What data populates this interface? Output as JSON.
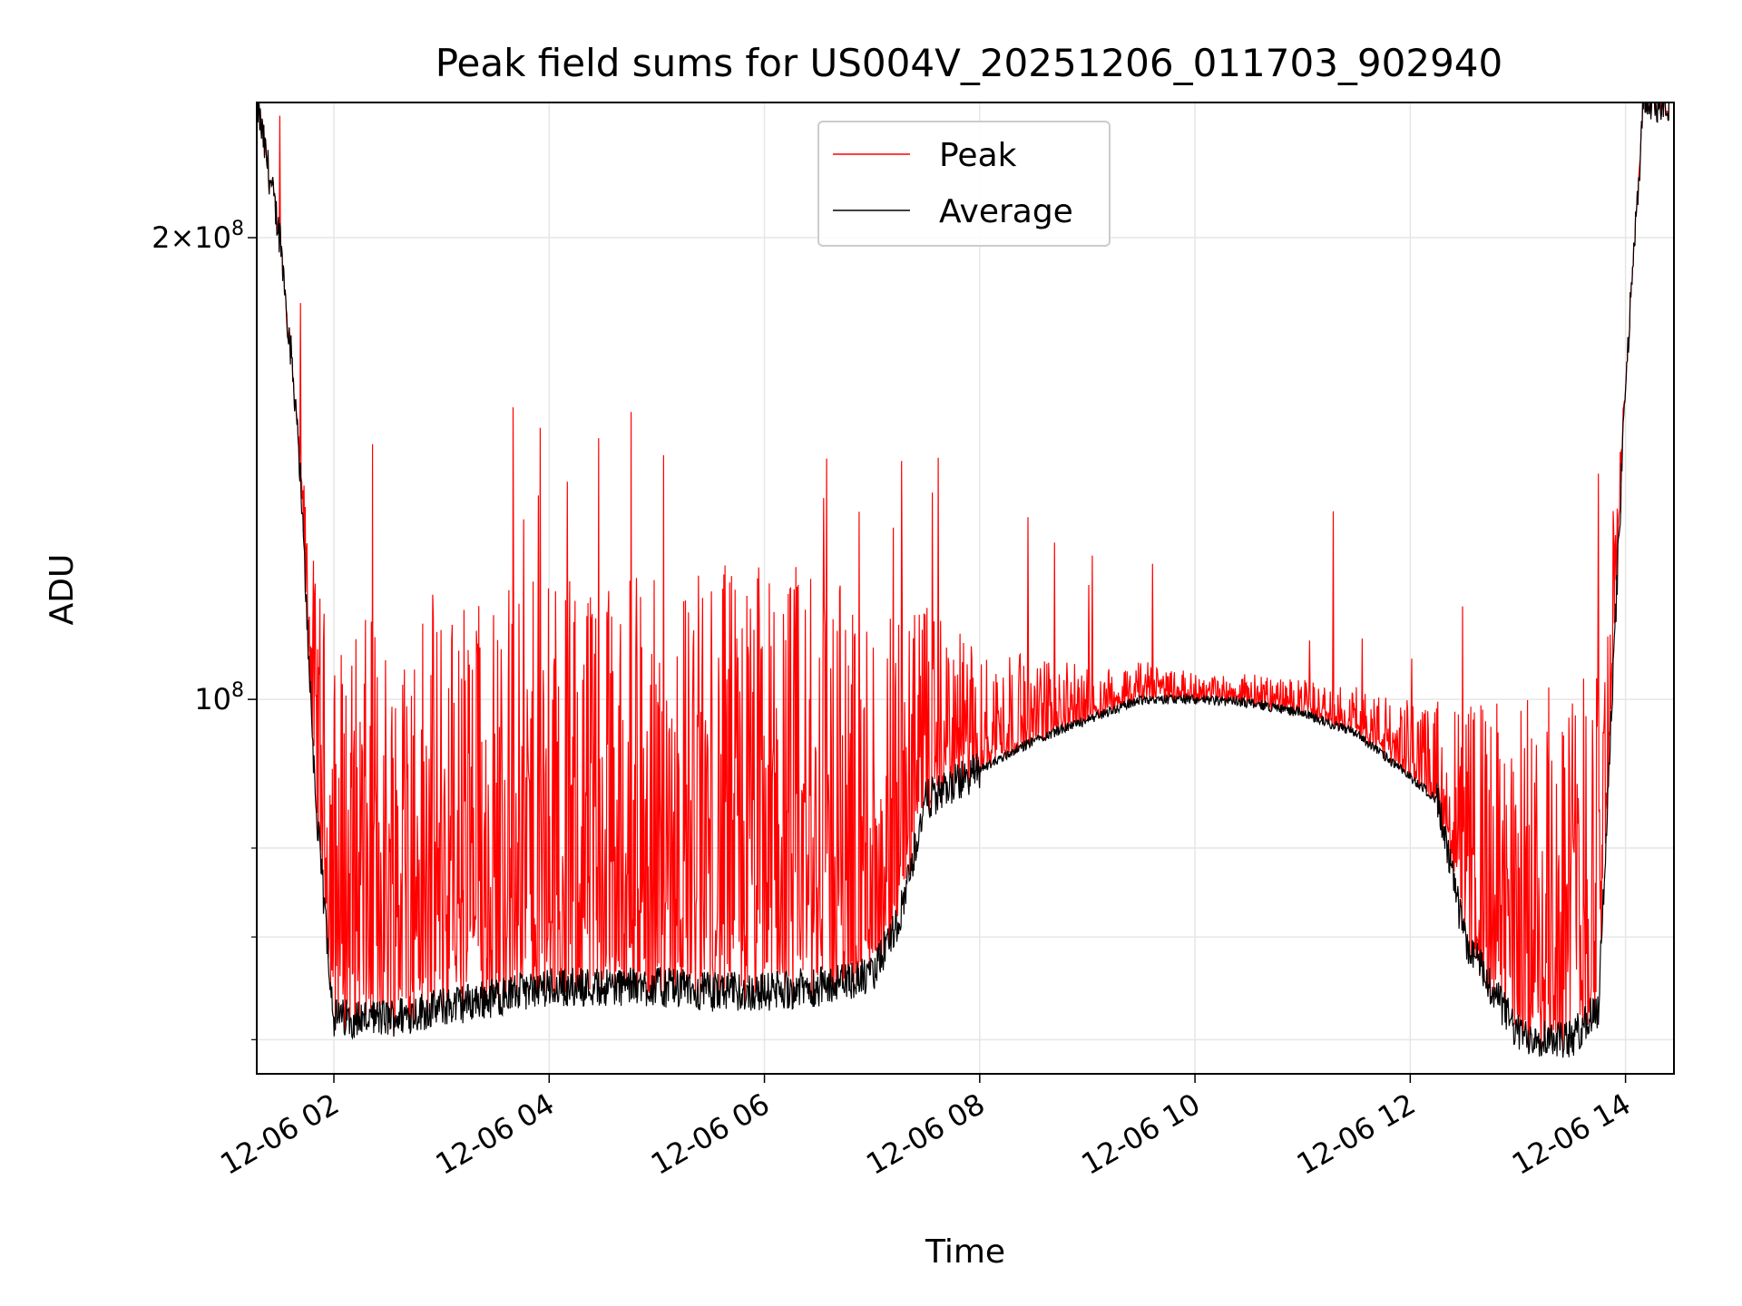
{
  "chart_data": {
    "type": "line",
    "title": "Peak field sums for US004V_20251206_011703_902940",
    "xlabel": "Time",
    "ylabel": "ADU",
    "x_ticks": [
      "12-06 02",
      "12-06 04",
      "12-06 06",
      "12-06 08",
      "12-06 10",
      "12-06 12",
      "12-06 14"
    ],
    "y_tick_labels": [
      "10",
      "2×10"
    ],
    "y_tick_exponent": "8",
    "y_scale": "log",
    "ylim": [
      57000000,
      245000000
    ],
    "xlim": [
      "2025-12-06 01:17",
      "2025-12-06 14:27"
    ],
    "grid": true,
    "legend_position": "upper-center",
    "colors": {
      "peak": "#ff0000",
      "average": "#000000",
      "grid": "#e6e6e6"
    },
    "series": [
      {
        "name": "Peak",
        "points": [
          [
            "01:17",
            245000000
          ],
          [
            "01:30",
            200000000
          ],
          [
            "01:40",
            150000000
          ],
          [
            "01:50",
            120000000
          ],
          [
            "02:00",
            110000000
          ],
          [
            "02:30",
            115000000
          ],
          [
            "03:00",
            118000000
          ],
          [
            "03:30",
            120000000
          ],
          [
            "04:00",
            120000000
          ],
          [
            "04:30",
            120000000
          ],
          [
            "05:00",
            122000000
          ],
          [
            "05:30",
            122000000
          ],
          [
            "06:00",
            125000000
          ],
          [
            "06:30",
            122000000
          ],
          [
            "07:00",
            120000000
          ],
          [
            "07:30",
            115000000
          ],
          [
            "08:00",
            108000000
          ],
          [
            "08:30",
            107000000
          ],
          [
            "09:00",
            105000000
          ],
          [
            "09:30",
            106000000
          ],
          [
            "10:00",
            104000000
          ],
          [
            "10:30",
            104000000
          ],
          [
            "11:00",
            103000000
          ],
          [
            "11:30",
            102000000
          ],
          [
            "12:00",
            100000000
          ],
          [
            "12:30",
            100000000
          ],
          [
            "13:00",
            100000000
          ],
          [
            "13:30",
            105000000
          ],
          [
            "13:50",
            125000000
          ],
          [
            "14:00",
            160000000
          ],
          [
            "14:10",
            245000000
          ]
        ]
      },
      {
        "name": "Average",
        "points": [
          [
            "01:17",
            245000000
          ],
          [
            "01:30",
            200000000
          ],
          [
            "01:40",
            150000000
          ],
          [
            "01:50",
            85000000
          ],
          [
            "02:00",
            62000000
          ],
          [
            "02:30",
            62000000
          ],
          [
            "03:00",
            63000000
          ],
          [
            "03:30",
            64000000
          ],
          [
            "04:00",
            65000000
          ],
          [
            "04:30",
            65000000
          ],
          [
            "05:00",
            65000000
          ],
          [
            "05:30",
            64500000
          ],
          [
            "06:00",
            64500000
          ],
          [
            "06:30",
            65000000
          ],
          [
            "07:00",
            66000000
          ],
          [
            "07:15",
            72000000
          ],
          [
            "07:30",
            86000000
          ],
          [
            "08:00",
            90000000
          ],
          [
            "08:30",
            94000000
          ],
          [
            "09:00",
            97000000
          ],
          [
            "09:30",
            100000000
          ],
          [
            "10:00",
            100000000
          ],
          [
            "10:30",
            99500000
          ],
          [
            "11:00",
            98000000
          ],
          [
            "11:30",
            95000000
          ],
          [
            "12:00",
            89000000
          ],
          [
            "12:15",
            86000000
          ],
          [
            "12:30",
            70000000
          ],
          [
            "13:00",
            60500000
          ],
          [
            "13:30",
            60000000
          ],
          [
            "13:45",
            63000000
          ],
          [
            "14:00",
            160000000
          ],
          [
            "14:10",
            245000000
          ]
        ]
      }
    ]
  }
}
